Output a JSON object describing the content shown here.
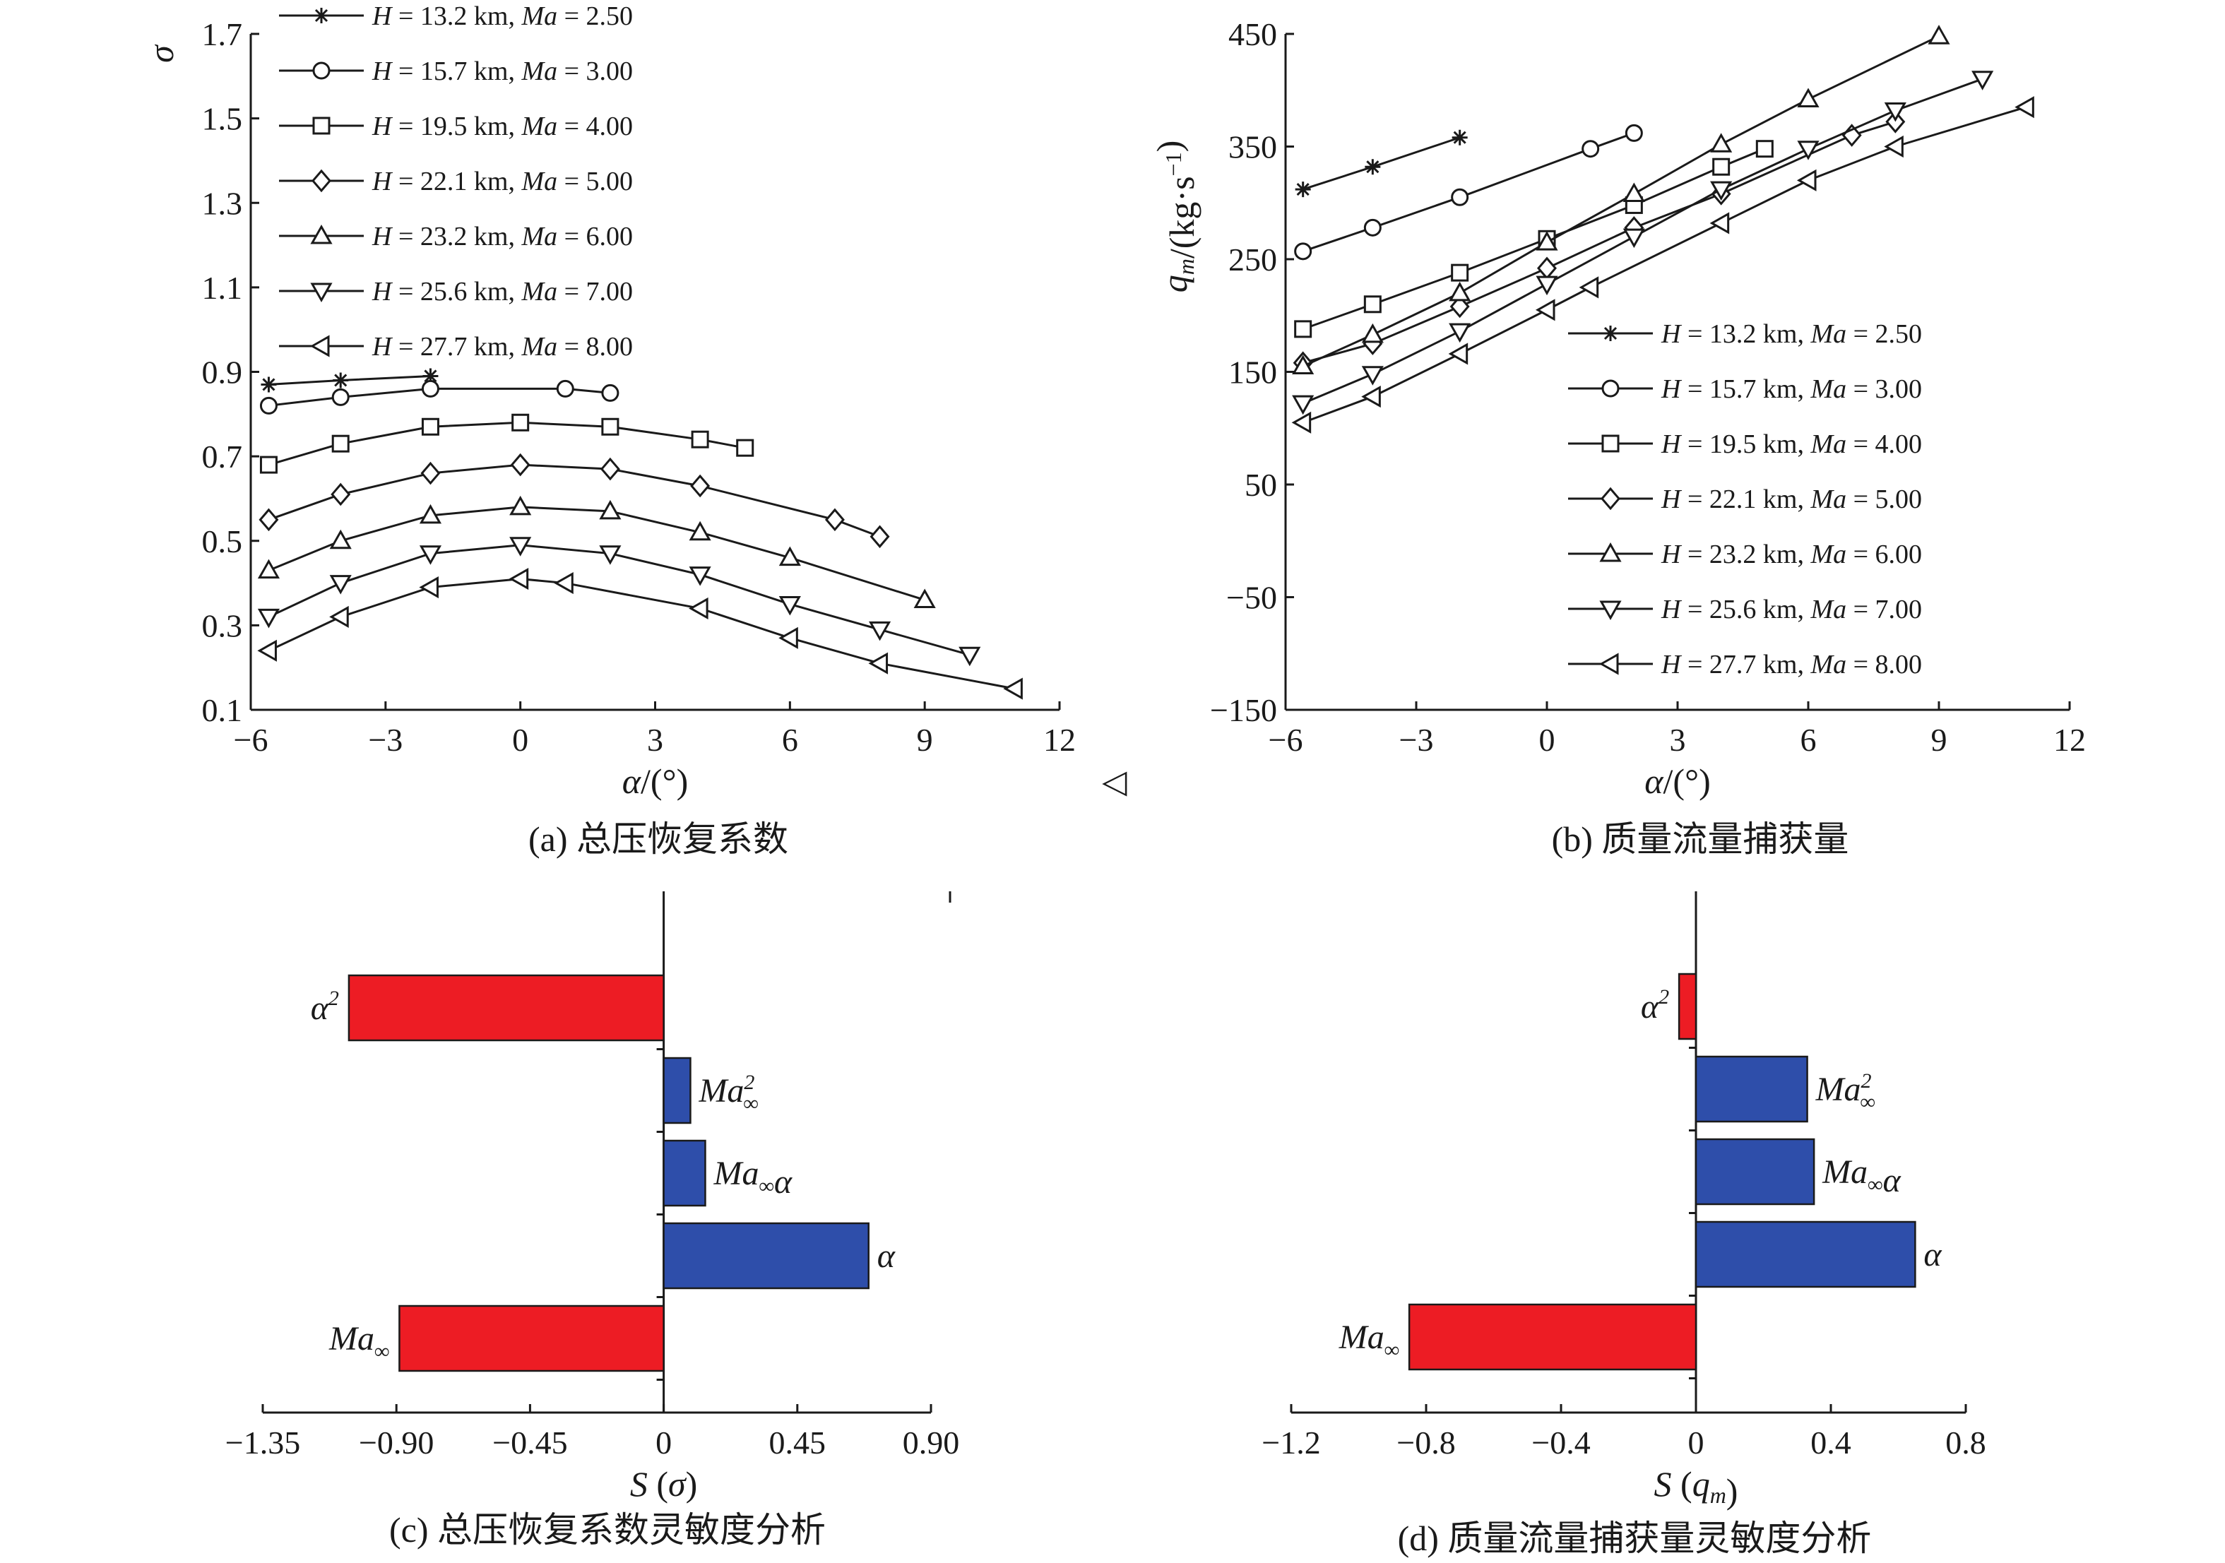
{
  "captions": {
    "a": "(a) 总压恢复系数",
    "b": "(b) 质量流量捕获量",
    "c": "(c) 总压恢复系数灵敏度分析",
    "d": "(d) 质量流量捕获量灵敏度分析"
  },
  "chart_data": [
    {
      "type": "line",
      "panel": "a",
      "xlabel": "α/(°)",
      "ylabel": "σ",
      "xlim": [
        -6,
        12
      ],
      "ylim": [
        0.1,
        1.7
      ],
      "xticks": [
        "−6",
        "−3",
        "0",
        "3",
        "6",
        "9",
        "12"
      ],
      "yticks": [
        "0.1",
        "0.3",
        "0.5",
        "0.7",
        "0.9",
        "1.1",
        "1.3",
        "1.5",
        "1.7"
      ],
      "legend_position": "top-left",
      "stray_marker": "◁",
      "series": [
        {
          "name": "H = 13.2 km, Ma = 2.50",
          "marker": "star",
          "points": [
            [
              -5.6,
              0.87
            ],
            [
              -4,
              0.88
            ],
            [
              -2,
              0.89
            ]
          ]
        },
        {
          "name": "H = 15.7 km, Ma = 3.00",
          "marker": "circle",
          "points": [
            [
              -5.6,
              0.82
            ],
            [
              -4,
              0.84
            ],
            [
              -2,
              0.86
            ],
            [
              1,
              0.86
            ],
            [
              2,
              0.85
            ]
          ]
        },
        {
          "name": "H = 19.5 km, Ma = 4.00",
          "marker": "square",
          "points": [
            [
              -5.6,
              0.68
            ],
            [
              -4,
              0.73
            ],
            [
              -2,
              0.77
            ],
            [
              0,
              0.78
            ],
            [
              2,
              0.77
            ],
            [
              4,
              0.74
            ],
            [
              5,
              0.72
            ]
          ]
        },
        {
          "name": "H = 22.1 km, Ma = 5.00",
          "marker": "diamond",
          "points": [
            [
              -5.6,
              0.55
            ],
            [
              -4,
              0.61
            ],
            [
              -2,
              0.66
            ],
            [
              0,
              0.68
            ],
            [
              2,
              0.67
            ],
            [
              4,
              0.63
            ],
            [
              7,
              0.55
            ],
            [
              8,
              0.51
            ]
          ]
        },
        {
          "name": "H = 23.2 km, Ma = 6.00",
          "marker": "triangle-up",
          "points": [
            [
              -5.6,
              0.43
            ],
            [
              -4,
              0.5
            ],
            [
              -2,
              0.56
            ],
            [
              0,
              0.58
            ],
            [
              2,
              0.57
            ],
            [
              4,
              0.52
            ],
            [
              6,
              0.46
            ],
            [
              9,
              0.36
            ]
          ]
        },
        {
          "name": "H = 25.6 km, Ma = 7.00",
          "marker": "triangle-down",
          "points": [
            [
              -5.6,
              0.32
            ],
            [
              -4,
              0.4
            ],
            [
              -2,
              0.47
            ],
            [
              0,
              0.49
            ],
            [
              2,
              0.47
            ],
            [
              4,
              0.42
            ],
            [
              6,
              0.35
            ],
            [
              8,
              0.29
            ],
            [
              10,
              0.23
            ]
          ]
        },
        {
          "name": "H = 27.7 km, Ma = 8.00",
          "marker": "triangle-left",
          "points": [
            [
              -5.6,
              0.24
            ],
            [
              -4,
              0.32
            ],
            [
              -2,
              0.39
            ],
            [
              0,
              0.41
            ],
            [
              1,
              0.4
            ],
            [
              4,
              0.34
            ],
            [
              6,
              0.27
            ],
            [
              8,
              0.21
            ],
            [
              11,
              0.15
            ]
          ]
        }
      ]
    },
    {
      "type": "line",
      "panel": "b",
      "xlabel": "α/(°)",
      "ylabel": "q_m/(kg·s⁻¹)",
      "xlim": [
        -6,
        12
      ],
      "ylim": [
        -150,
        450
      ],
      "xticks": [
        "−6",
        "−3",
        "0",
        "3",
        "6",
        "9",
        "12"
      ],
      "yticks": [
        "−150",
        "−50",
        "50",
        "150",
        "250",
        "350",
        "450"
      ],
      "legend_position": "center-right",
      "series": [
        {
          "name": "H = 13.2 km, Ma = 2.50",
          "marker": "star",
          "points": [
            [
              -5.6,
              312
            ],
            [
              -4,
              332
            ],
            [
              -2,
              358
            ]
          ]
        },
        {
          "name": "H = 15.7 km, Ma = 3.00",
          "marker": "circle",
          "points": [
            [
              -5.6,
              257
            ],
            [
              -4,
              278
            ],
            [
              -2,
              305
            ],
            [
              1,
              348
            ],
            [
              2,
              362
            ]
          ]
        },
        {
          "name": "H = 19.5 km, Ma = 4.00",
          "marker": "square",
          "points": [
            [
              -5.6,
              188
            ],
            [
              -4,
              210
            ],
            [
              -2,
              238
            ],
            [
              0,
              268
            ],
            [
              2,
              298
            ],
            [
              4,
              332
            ],
            [
              5,
              348
            ]
          ]
        },
        {
          "name": "H = 22.1 km, Ma = 5.00",
          "marker": "diamond",
          "points": [
            [
              -5.6,
              158
            ],
            [
              -4,
              175
            ],
            [
              -2,
              208
            ],
            [
              0,
              242
            ],
            [
              2,
              278
            ],
            [
              4,
              308
            ],
            [
              7,
              360
            ],
            [
              8,
              372
            ]
          ]
        },
        {
          "name": "H = 23.2 km, Ma = 6.00",
          "marker": "triangle-up",
          "points": [
            [
              -5.6,
              155
            ],
            [
              -4,
              183
            ],
            [
              -2,
              220
            ],
            [
              0,
              265
            ],
            [
              2,
              308
            ],
            [
              4,
              352
            ],
            [
              6,
              392
            ],
            [
              9,
              448
            ]
          ]
        },
        {
          "name": "H = 25.6 km, Ma = 7.00",
          "marker": "triangle-down",
          "points": [
            [
              -5.6,
              122
            ],
            [
              -4,
              148
            ],
            [
              -2,
              186
            ],
            [
              0,
              228
            ],
            [
              2,
              270
            ],
            [
              4,
              312
            ],
            [
              6,
              348
            ],
            [
              8,
              382
            ],
            [
              10,
              410
            ]
          ]
        },
        {
          "name": "H = 27.7 km, Ma = 8.00",
          "marker": "triangle-left",
          "points": [
            [
              -5.6,
              105
            ],
            [
              -4,
              128
            ],
            [
              -2,
              166
            ],
            [
              0,
              205
            ],
            [
              1,
              225
            ],
            [
              4,
              282
            ],
            [
              6,
              320
            ],
            [
              8,
              350
            ],
            [
              11,
              385
            ]
          ]
        }
      ]
    },
    {
      "type": "bar",
      "panel": "c",
      "orientation": "horizontal",
      "xlabel": "S (σ)",
      "xlim": [
        -1.35,
        0.9
      ],
      "xticks": [
        "−1.35",
        "−0.90",
        "−0.45",
        "0",
        "0.45",
        "0.90"
      ],
      "bars": [
        {
          "label": "α²",
          "value": -1.06,
          "color": "#ed1c24"
        },
        {
          "label": "Ma∞²",
          "value": 0.09,
          "color": "#2e4eaa"
        },
        {
          "label": "Ma∞α",
          "value": 0.14,
          "color": "#2e4eaa"
        },
        {
          "label": "α",
          "value": 0.69,
          "color": "#2e4eaa"
        },
        {
          "label": "Ma∞",
          "value": -0.89,
          "color": "#ed1c24"
        }
      ]
    },
    {
      "type": "bar",
      "panel": "d",
      "orientation": "horizontal",
      "xlabel": "S (q_m)",
      "xlim": [
        -1.2,
        0.8
      ],
      "xticks": [
        "−1.2",
        "−0.8",
        "−0.4",
        "0",
        "0.4",
        "0.8"
      ],
      "bars": [
        {
          "label": "α²",
          "value": -0.05,
          "color": "#ed1c24"
        },
        {
          "label": "Ma∞²",
          "value": 0.33,
          "color": "#2e4eaa"
        },
        {
          "label": "Ma∞α",
          "value": 0.35,
          "color": "#2e4eaa"
        },
        {
          "label": "α",
          "value": 0.65,
          "color": "#2e4eaa"
        },
        {
          "label": "Ma∞",
          "value": -0.85,
          "color": "#ed1c24"
        }
      ]
    }
  ]
}
